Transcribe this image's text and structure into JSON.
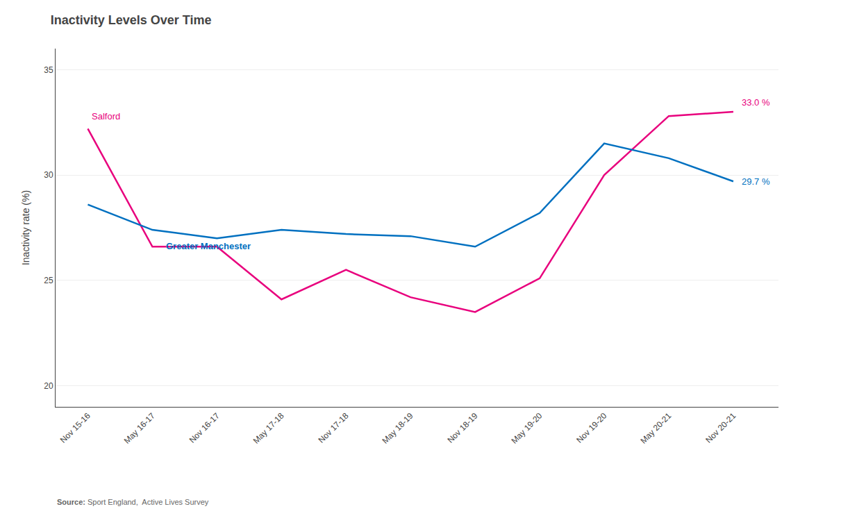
{
  "chart_data": {
    "type": "line",
    "title": "Inactivity Levels Over Time",
    "y_label": "Inactivity rate (%)",
    "categories": [
      "Nov 15-16",
      "May 16-17",
      "Nov 16-17",
      "May 17-18",
      "Nov 17-18",
      "May 18-19",
      "Nov 18-19",
      "May 19-20",
      "Nov 19-20",
      "May 20-21",
      "Nov 20-21"
    ],
    "series": [
      {
        "name": "Salford",
        "color": "#E8007D",
        "values": [
          32.2,
          26.6,
          26.6,
          24.1,
          25.5,
          24.2,
          23.5,
          25.1,
          30.0,
          32.8,
          33.0
        ]
      },
      {
        "name": "Greater Manchester",
        "color": "#0070C0",
        "values": [
          28.6,
          27.4,
          27.0,
          27.4,
          27.2,
          27.1,
          26.6,
          28.2,
          31.5,
          30.8,
          29.7
        ]
      }
    ],
    "annotations": [
      "33.0 %",
      "29.7 %"
    ],
    "source": [
      "Source:",
      "Sport England,  Active Lives Survey"
    ],
    "ylim": [
      19,
      36
    ],
    "yticks": [
      20,
      25,
      30,
      35
    ],
    "grid": true
  }
}
